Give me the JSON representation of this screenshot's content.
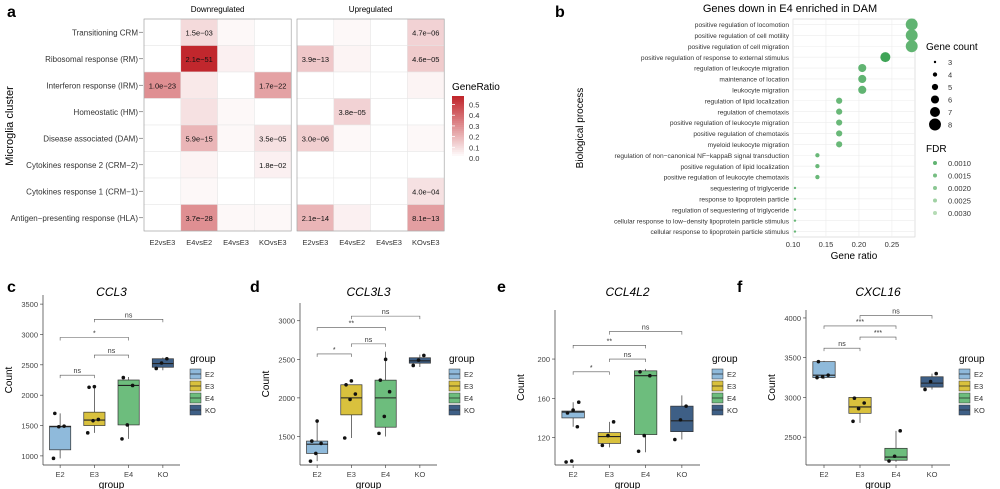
{
  "figure": {
    "panel_labels": [
      "a",
      "b",
      "c",
      "d",
      "e",
      "f"
    ]
  },
  "chart_data": [
    {
      "type": "heatmap",
      "panel": "a",
      "ylabel": "Microglia cluster",
      "rows": [
        "Transitioning CRM",
        "Ribosomal response (RM)",
        "Interferon response (IRM)",
        "Homeostatic (HM)",
        "Disease associated (DAM)",
        "Cytokines response 2 (CRM−2)",
        "Cytokines response 1 (CRM−1)",
        "Antigen−presenting response (HLA)"
      ],
      "columns": [
        "E2vsE3",
        "E4vsE2",
        "E4vsE3",
        "KOvsE3"
      ],
      "facets": [
        {
          "title": "Downregulated",
          "ratio": [
            [
              0,
              0.1,
              0.02,
              0
            ],
            [
              0,
              0.58,
              0.04,
              0
            ],
            [
              0.3,
              0.06,
              0,
              0.25
            ],
            [
              0,
              0.08,
              0.02,
              0
            ],
            [
              0,
              0.2,
              0.02,
              0.08
            ],
            [
              0,
              0.03,
              0,
              0.04
            ],
            [
              0,
              0.02,
              0,
              0
            ],
            [
              0,
              0.3,
              0.02,
              0.02
            ]
          ],
          "labels": [
            [
              "",
              "1.5e−03",
              "",
              ""
            ],
            [
              "",
              "2.1e−51",
              "",
              ""
            ],
            [
              "1.0e−23",
              "",
              "",
              "1.7e−22"
            ],
            [
              "",
              "",
              "",
              ""
            ],
            [
              "",
              "5.9e−15",
              "",
              "3.5e−05"
            ],
            [
              "",
              "",
              "",
              "1.8e−02"
            ],
            [
              "",
              "",
              "",
              ""
            ],
            [
              "",
              "3.7e−28",
              "",
              ""
            ]
          ]
        },
        {
          "title": "Upregulated",
          "ratio": [
            [
              0,
              0.02,
              0,
              0.12
            ],
            [
              0.15,
              0.03,
              0,
              0.14
            ],
            [
              0,
              0,
              0,
              0.03
            ],
            [
              0,
              0.12,
              0,
              0
            ],
            [
              0.13,
              0.02,
              0,
              0.02
            ],
            [
              0,
              0,
              0,
              0
            ],
            [
              0,
              0,
              0,
              0.08
            ],
            [
              0.2,
              0.04,
              0,
              0.26
            ]
          ],
          "labels": [
            [
              "",
              "",
              "",
              "4.7e−06"
            ],
            [
              "3.9e−13",
              "",
              "",
              "4.6e−05"
            ],
            [
              "",
              "",
              "",
              ""
            ],
            [
              "",
              "3.8e−05",
              "",
              ""
            ],
            [
              "3.0e−06",
              "",
              "",
              ""
            ],
            [
              "",
              "",
              "",
              ""
            ],
            [
              "",
              "",
              "",
              "4.0e−04"
            ],
            [
              "2.1e−14",
              "",
              "",
              "8.1e−13"
            ]
          ]
        }
      ],
      "legend": {
        "title": "GeneRatio",
        "ticks": [
          0.5,
          0.4,
          0.3,
          0.2,
          0.1,
          0.0
        ],
        "tick_labels": [
          "0.5",
          "0.4",
          "0.3",
          "0.2",
          "0.1",
          "0.0"
        ],
        "max": 0.58
      }
    },
    {
      "type": "scatter",
      "panel": "b",
      "title": "Genes down in E4 enriched in DAM",
      "xlabel": "Gene ratio",
      "ylabel": "Biological process",
      "xlim": [
        0.1,
        0.285
      ],
      "xticks": [
        0.1,
        0.15,
        0.2,
        0.25
      ],
      "xtick_labels": [
        "0.10",
        "0.15",
        "0.20",
        "0.25"
      ],
      "terms": [
        {
          "label": "positive regulation of locomotion",
          "ratio": 0.28,
          "count": 8,
          "fdr": 0.001
        },
        {
          "label": "positive regulation of cell motility",
          "ratio": 0.28,
          "count": 8,
          "fdr": 0.001
        },
        {
          "label": "positive regulation of cell migration",
          "ratio": 0.28,
          "count": 8,
          "fdr": 0.001
        },
        {
          "label": "positive regulation of response to external stimulus",
          "ratio": 0.24,
          "count": 7,
          "fdr": 0.0002
        },
        {
          "label": "regulation of leukocyte migration",
          "ratio": 0.205,
          "count": 6,
          "fdr": 0.001
        },
        {
          "label": "maintenance of location",
          "ratio": 0.205,
          "count": 6,
          "fdr": 0.001
        },
        {
          "label": "leukocyte migration",
          "ratio": 0.205,
          "count": 6,
          "fdr": 0.001
        },
        {
          "label": "regulation of lipid localization",
          "ratio": 0.17,
          "count": 5,
          "fdr": 0.0012
        },
        {
          "label": "regulation of chemotaxis",
          "ratio": 0.17,
          "count": 5,
          "fdr": 0.0012
        },
        {
          "label": "positive regulation of leukocyte migration",
          "ratio": 0.17,
          "count": 5,
          "fdr": 0.0012
        },
        {
          "label": "positive regulation of chemotaxis",
          "ratio": 0.17,
          "count": 5,
          "fdr": 0.0012
        },
        {
          "label": "myeloid leukocyte migration",
          "ratio": 0.17,
          "count": 5,
          "fdr": 0.0012
        },
        {
          "label": "regulation of non−canonical NF−kappaB signal transduction",
          "ratio": 0.137,
          "count": 4,
          "fdr": 0.0012
        },
        {
          "label": "positive regulation of lipid localization",
          "ratio": 0.137,
          "count": 4,
          "fdr": 0.0012
        },
        {
          "label": "positive regulation of leukocyte chemotaxis",
          "ratio": 0.137,
          "count": 4,
          "fdr": 0.0012
        },
        {
          "label": "sequestering of triglyceride",
          "ratio": 0.103,
          "count": 3,
          "fdr": 0.0012
        },
        {
          "label": "response to lipoprotein particle",
          "ratio": 0.103,
          "count": 3,
          "fdr": 0.0012
        },
        {
          "label": "regulation of sequestering of triglyceride",
          "ratio": 0.103,
          "count": 3,
          "fdr": 0.0012
        },
        {
          "label": "cellular response to low−density lipoprotein particle stimulus",
          "ratio": 0.103,
          "count": 3,
          "fdr": 0.0012
        },
        {
          "label": "cellular response to lipoprotein particle stimulus",
          "ratio": 0.103,
          "count": 3,
          "fdr": 0.0012
        }
      ],
      "size_legend": {
        "title": "Gene count",
        "values": [
          3,
          4,
          5,
          6,
          7,
          8
        ],
        "labels": [
          "3",
          "4",
          "5",
          "6",
          "7",
          "8"
        ]
      },
      "fdr_legend": {
        "title": "FDR",
        "values": [
          0.001,
          0.0015,
          0.002,
          0.0025,
          0.003
        ],
        "labels": [
          "0.0010",
          "0.0015",
          "0.0020",
          "0.0025",
          "0.0030"
        ]
      }
    },
    {
      "type": "boxplot",
      "panel": "c",
      "title": "CCL3",
      "xlabel": "group",
      "ylabel": "Count",
      "ylim": [
        850,
        3650
      ],
      "yticks": [
        1000,
        1500,
        2000,
        2500,
        3000,
        3500
      ],
      "ytick_labels": [
        "1000",
        "1500",
        "2000",
        "2500",
        "3000",
        "3500"
      ],
      "groups": [
        "E2",
        "E3",
        "E4",
        "KO"
      ],
      "boxes": [
        {
          "group": "E2",
          "q1": 1100,
          "median": 1480,
          "q3": 1490,
          "low": 960,
          "high": 1700,
          "points": [
            960,
            1480,
            1490,
            1700
          ]
        },
        {
          "group": "E3",
          "q1": 1500,
          "median": 1590,
          "q3": 1720,
          "low": 1380,
          "high": 2130,
          "points": [
            1380,
            1580,
            1600,
            2130,
            2140
          ]
        },
        {
          "group": "E4",
          "q1": 1510,
          "median": 2160,
          "q3": 2250,
          "low": 1280,
          "high": 2300,
          "points": [
            1280,
            1510,
            2160,
            2290
          ]
        },
        {
          "group": "KO",
          "q1": 2460,
          "median": 2520,
          "q3": 2600,
          "low": 2410,
          "high": 2620,
          "points": [
            2440,
            2530,
            2600
          ]
        }
      ],
      "brackets": [
        {
          "from": "E2",
          "to": "E3",
          "label": "ns",
          "y": 2330
        },
        {
          "from": "E3",
          "to": "E4",
          "label": "ns",
          "y": 2660
        },
        {
          "from": "E2",
          "to": "E4",
          "label": "*",
          "y": 2950
        },
        {
          "from": "E3",
          "to": "KO",
          "label": "ns",
          "y": 3250
        }
      ],
      "legend_title": "group"
    },
    {
      "type": "boxplot",
      "panel": "d",
      "title": "CCL3L3",
      "xlabel": "group",
      "ylabel": "Count",
      "ylim": [
        1130,
        3230
      ],
      "yticks": [
        1500,
        2000,
        2500,
        3000
      ],
      "ytick_labels": [
        "1500",
        "2000",
        "2500",
        "3000"
      ],
      "groups": [
        "E2",
        "E3",
        "E4",
        "KO"
      ],
      "boxes": [
        {
          "group": "E2",
          "q1": 1280,
          "median": 1400,
          "q3": 1440,
          "low": 1180,
          "high": 1700,
          "points": [
            1180,
            1280,
            1410,
            1440,
            1700
          ]
        },
        {
          "group": "E3",
          "q1": 1780,
          "median": 2000,
          "q3": 2170,
          "low": 1480,
          "high": 2170,
          "points": [
            1480,
            1980,
            2050,
            2170,
            2220
          ]
        },
        {
          "group": "E4",
          "q1": 1620,
          "median": 2000,
          "q3": 2230,
          "low": 1500,
          "high": 2600,
          "points": [
            1540,
            1760,
            2080,
            2230,
            2500
          ]
        },
        {
          "group": "KO",
          "q1": 2450,
          "median": 2480,
          "q3": 2520,
          "low": 2400,
          "high": 2560,
          "points": [
            2420,
            2490,
            2550
          ]
        }
      ],
      "brackets": [
        {
          "from": "E2",
          "to": "E3",
          "label": "*",
          "y": 2570
        },
        {
          "from": "E3",
          "to": "E4",
          "label": "ns",
          "y": 2700
        },
        {
          "from": "E2",
          "to": "E4",
          "label": "**",
          "y": 2910
        },
        {
          "from": "E3",
          "to": "KO",
          "label": "ns",
          "y": 3060
        }
      ],
      "legend_title": "group"
    },
    {
      "type": "boxplot",
      "panel": "e",
      "title": "CCL4L2",
      "xlabel": "group",
      "ylabel": "Count",
      "ylim": [
        92,
        250
      ],
      "yticks": [
        120,
        160,
        200
      ],
      "ytick_labels": [
        "120",
        "160",
        "200"
      ],
      "groups": [
        "E2",
        "E3",
        "E4",
        "KO"
      ],
      "boxes": [
        {
          "group": "E2",
          "q1": 140,
          "median": 146,
          "q3": 147,
          "low": 131,
          "high": 156,
          "points": [
            95,
            96,
            131,
            145,
            148,
            156
          ]
        },
        {
          "group": "E3",
          "q1": 114,
          "median": 121,
          "q3": 125,
          "low": 110,
          "high": 136,
          "points": [
            112,
            122,
            136
          ]
        },
        {
          "group": "E4",
          "q1": 123,
          "median": 183,
          "q3": 188,
          "low": 105,
          "high": 190,
          "points": [
            106,
            122,
            183,
            187
          ]
        },
        {
          "group": "KO",
          "q1": 126,
          "median": 137,
          "q3": 152,
          "low": 118,
          "high": 163,
          "points": [
            118,
            138,
            152
          ]
        }
      ],
      "brackets": [
        {
          "from": "E2",
          "to": "E3",
          "label": "*",
          "y": 187
        },
        {
          "from": "E3",
          "to": "E4",
          "label": "ns",
          "y": 200
        },
        {
          "from": "E2",
          "to": "E4",
          "label": "**",
          "y": 214
        },
        {
          "from": "E3",
          "to": "KO",
          "label": "ns",
          "y": 228
        }
      ],
      "legend_title": "group"
    },
    {
      "type": "boxplot",
      "panel": "f",
      "title": "CXCL16",
      "xlabel": "group",
      "ylabel": "Count",
      "ylim": [
        2150,
        4100
      ],
      "yticks": [
        2500,
        3000,
        3500,
        4000
      ],
      "ytick_labels": [
        "2500",
        "3000",
        "3500",
        "4000"
      ],
      "groups": [
        "E2",
        "E3",
        "E4",
        "KO"
      ],
      "boxes": [
        {
          "group": "E2",
          "q1": 3250,
          "median": 3280,
          "q3": 3450,
          "low": 3230,
          "high": 3460,
          "points": [
            3250,
            3260,
            3280,
            3450
          ]
        },
        {
          "group": "E3",
          "q1": 2800,
          "median": 2880,
          "q3": 3000,
          "low": 2680,
          "high": 3000,
          "points": [
            2700,
            2860,
            2930,
            2990
          ]
        },
        {
          "group": "E4",
          "q1": 2210,
          "median": 2250,
          "q3": 2360,
          "low": 2190,
          "high": 2580,
          "points": [
            2200,
            2260,
            2580
          ]
        },
        {
          "group": "KO",
          "q1": 3130,
          "median": 3180,
          "q3": 3260,
          "low": 3100,
          "high": 3300,
          "points": [
            3100,
            3200,
            3300
          ]
        }
      ],
      "brackets": [
        {
          "from": "E2",
          "to": "E3",
          "label": "ns",
          "y": 3620
        },
        {
          "from": "E3",
          "to": "E4",
          "label": "***",
          "y": 3760
        },
        {
          "from": "E2",
          "to": "E4",
          "label": "***",
          "y": 3900
        },
        {
          "from": "E3",
          "to": "KO",
          "label": "ns",
          "y": 4030
        }
      ],
      "legend_title": "group"
    }
  ],
  "group_colors": {
    "E2": "#8fbadb",
    "E3": "#d9c13d",
    "E4": "#6dbd7d",
    "KO": "#3e5f86"
  },
  "heat_colors": {
    "low": "#ffffff",
    "high": "#c1272d"
  },
  "dot_colors": {
    "dark": "#3fa457",
    "light": "#b9ddb8"
  }
}
